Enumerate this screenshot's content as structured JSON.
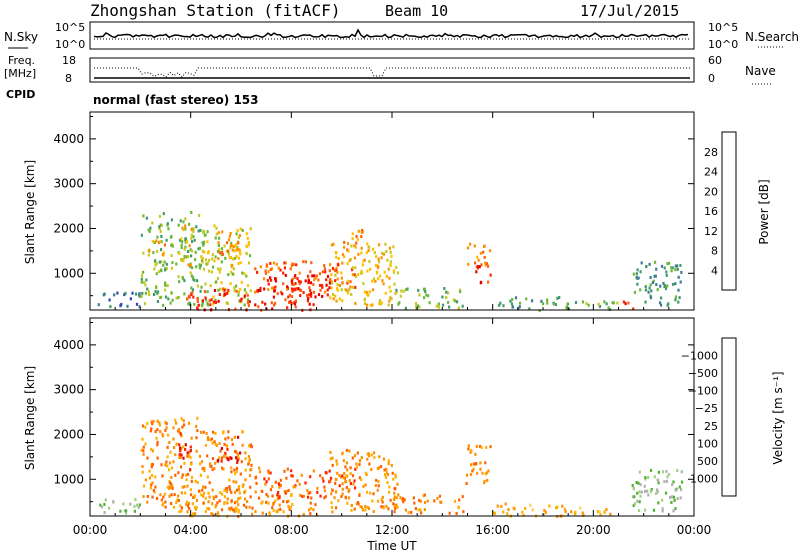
{
  "header": {
    "station": "Zhongshan Station (fitACF)",
    "beam": "Beam 10",
    "date": "17/Jul/2015"
  },
  "nsky_panel": {
    "left_label": "N.Sky",
    "left_ticks": [
      "10^5",
      "10^0"
    ],
    "right_ticks": [
      "10^5",
      "10^0"
    ],
    "right_label": "N.Search"
  },
  "freq_panel": {
    "left_label_top": "Freq.",
    "left_label_bottom": "[MHz]",
    "left_ticks": [
      "18",
      "8"
    ],
    "right_ticks": [
      "60",
      "0"
    ],
    "right_label": "Nave",
    "cpid_label": "CPID",
    "mode_text": "normal (fast stereo) 153"
  },
  "chart_data": [
    {
      "type": "heatmap",
      "name": "power",
      "ylabel": "Slant Range [km]",
      "xlabel": "Time UT",
      "x_ticks": [
        "00:00",
        "04:00",
        "08:00",
        "12:00",
        "16:00",
        "20:00",
        "00:00"
      ],
      "xlim_hours": [
        0,
        24
      ],
      "ylim_km": [
        180,
        4600
      ],
      "y_ticks": [
        1000,
        2000,
        3000,
        4000
      ],
      "colorbar": {
        "label": "Power [dB]",
        "ticks": [
          "4",
          "8",
          "12",
          "16",
          "20",
          "24",
          "28"
        ],
        "colors": [
          "#0019ff",
          "#2c48b8",
          "#3f7a94",
          "#3f9a6a",
          "#69b83a",
          "#c8c820",
          "#ffc000",
          "#ff9000",
          "#ff6010",
          "#ff2000",
          "#e60000"
        ]
      },
      "regions": [
        {
          "t0": 2.0,
          "t1": 4.5,
          "r0": 300,
          "r1": 2400,
          "level": 4
        },
        {
          "t0": 2.3,
          "t1": 3.0,
          "r0": 1400,
          "r1": 1800,
          "level": 7
        },
        {
          "t0": 3.5,
          "t1": 4.0,
          "r0": 1200,
          "r1": 2100,
          "level": 6
        },
        {
          "t0": 4.4,
          "t1": 6.4,
          "r0": 300,
          "r1": 2100,
          "level": 5
        },
        {
          "t0": 5.0,
          "t1": 6.0,
          "r0": 1200,
          "r1": 2000,
          "level": 7
        },
        {
          "t0": 3.8,
          "t1": 9.0,
          "r0": 200,
          "r1": 700,
          "level": 9
        },
        {
          "t0": 6.5,
          "t1": 10.5,
          "r0": 600,
          "r1": 1300,
          "level": 8
        },
        {
          "t0": 7.0,
          "t1": 9.5,
          "r0": 500,
          "r1": 1000,
          "level": 10
        },
        {
          "t0": 9.5,
          "t1": 12.2,
          "r0": 300,
          "r1": 1700,
          "level": 6
        },
        {
          "t0": 10.0,
          "t1": 11.0,
          "r0": 1400,
          "r1": 2000,
          "level": 7
        },
        {
          "t0": 12.0,
          "t1": 14.8,
          "r0": 250,
          "r1": 700,
          "level": 4
        },
        {
          "t0": 14.9,
          "t1": 15.9,
          "r0": 1200,
          "r1": 1700,
          "level": 7
        },
        {
          "t0": 15.3,
          "t1": 15.9,
          "r0": 700,
          "r1": 1200,
          "level": 9
        },
        {
          "t0": 16.0,
          "t1": 19.0,
          "r0": 200,
          "r1": 500,
          "level": 3
        },
        {
          "t0": 19.0,
          "t1": 21.0,
          "r0": 200,
          "r1": 400,
          "level": 4
        },
        {
          "t0": 21.0,
          "t1": 21.6,
          "r0": 200,
          "r1": 400,
          "level": 9
        },
        {
          "t0": 21.5,
          "t1": 23.5,
          "r0": 300,
          "r1": 1300,
          "level": 3
        },
        {
          "t0": 0.3,
          "t1": 2.0,
          "r0": 250,
          "r1": 600,
          "level": 2
        }
      ]
    },
    {
      "type": "heatmap",
      "name": "velocity",
      "ylabel": "Slant Range [km]",
      "xlabel": "Time UT",
      "x_ticks": [
        "00:00",
        "04:00",
        "08:00",
        "12:00",
        "16:00",
        "20:00",
        "00:00"
      ],
      "xlim_hours": [
        0,
        24
      ],
      "ylim_km": [
        180,
        4600
      ],
      "y_ticks": [
        1000,
        2000,
        3000,
        4000
      ],
      "colorbar": {
        "label": "Velocity [m s⁻¹]",
        "ticks": [
          "1000",
          "500",
          "100",
          "25",
          "−25",
          "−100",
          "−500",
          "−1000"
        ],
        "colors": [
          "#2030b0",
          "#3060a0",
          "#3f9060",
          "#50b030",
          "#a0d080",
          "#b0b0b0",
          "#ffd040",
          "#ffb000",
          "#ff9000",
          "#ff6000",
          "#ff2000",
          "#e00000"
        ]
      },
      "regions": [
        {
          "t0": 2.0,
          "t1": 4.5,
          "r0": 300,
          "r1": 2400,
          "level": 8
        },
        {
          "t0": 3.5,
          "t1": 4.0,
          "r0": 1200,
          "r1": 2100,
          "level": 10
        },
        {
          "t0": 4.4,
          "t1": 6.4,
          "r0": 300,
          "r1": 2100,
          "level": 8
        },
        {
          "t0": 5.0,
          "t1": 6.0,
          "r0": 1400,
          "r1": 2000,
          "level": 10
        },
        {
          "t0": 3.8,
          "t1": 9.0,
          "r0": 200,
          "r1": 700,
          "level": 8
        },
        {
          "t0": 6.5,
          "t1": 10.5,
          "r0": 600,
          "r1": 1300,
          "level": 9
        },
        {
          "t0": 9.5,
          "t1": 12.2,
          "r0": 300,
          "r1": 1700,
          "level": 8
        },
        {
          "t0": 12.0,
          "t1": 14.8,
          "r0": 250,
          "r1": 700,
          "level": 8
        },
        {
          "t0": 14.9,
          "t1": 15.9,
          "r0": 900,
          "r1": 1800,
          "level": 8
        },
        {
          "t0": 16.0,
          "t1": 19.0,
          "r0": 200,
          "r1": 500,
          "level": 7
        },
        {
          "t0": 19.0,
          "t1": 21.0,
          "r0": 200,
          "r1": 400,
          "level": 7
        },
        {
          "t0": 21.5,
          "t1": 23.5,
          "r0": 300,
          "r1": 1300,
          "level": 4
        },
        {
          "t0": 0.3,
          "t1": 2.0,
          "r0": 250,
          "r1": 600,
          "level": 4
        }
      ]
    }
  ]
}
